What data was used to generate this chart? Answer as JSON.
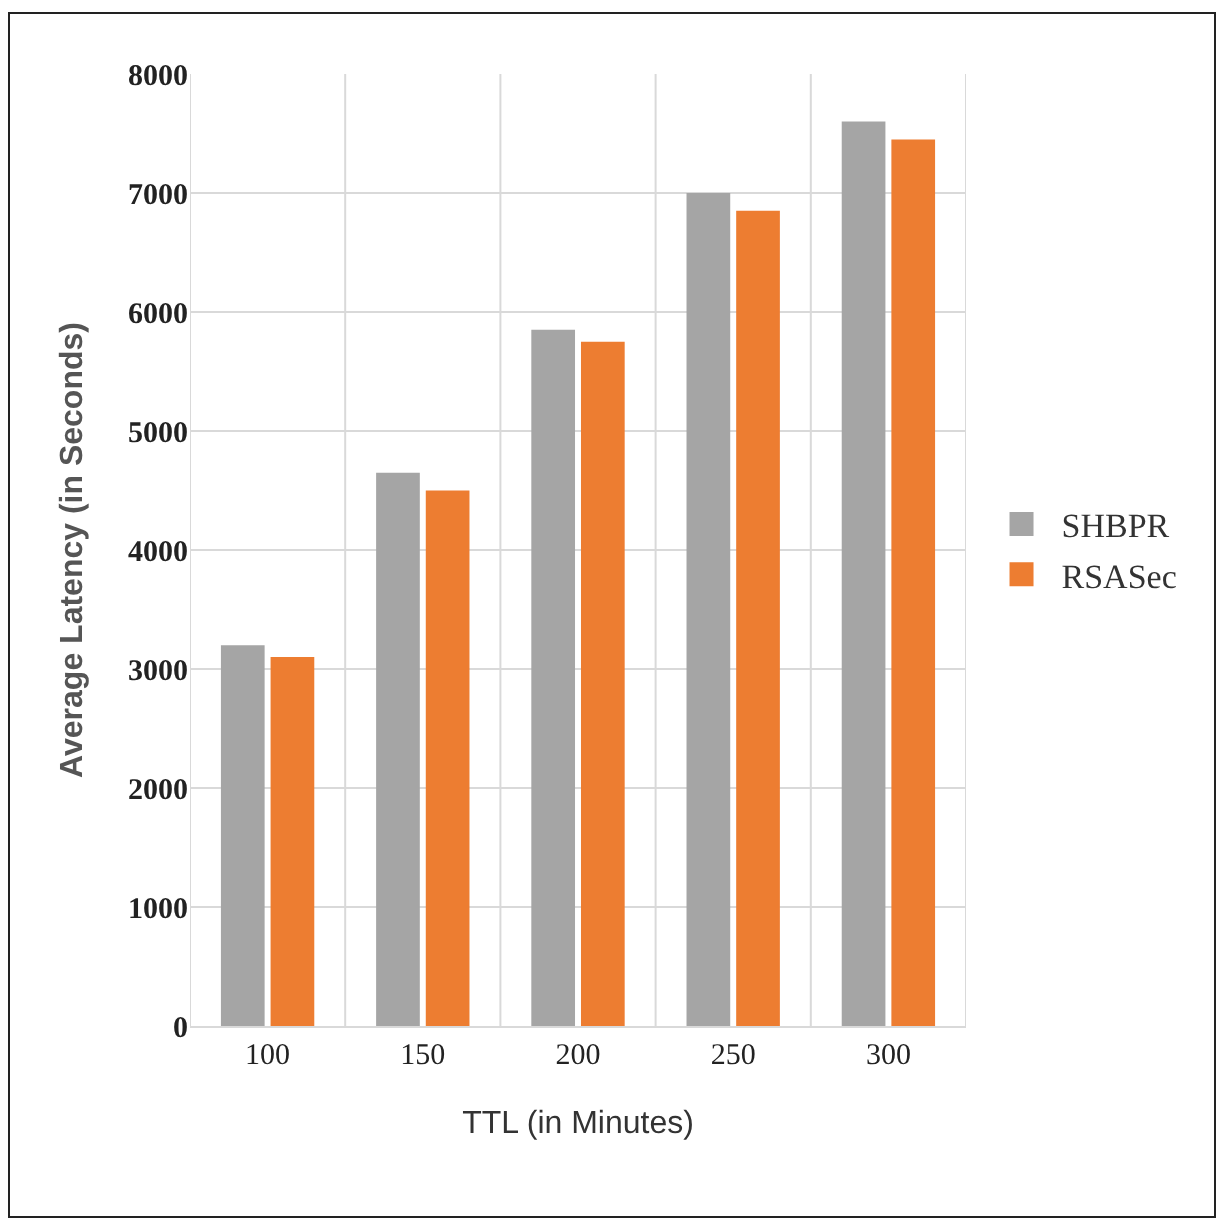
{
  "chart_data": {
    "type": "bar",
    "xlabel": "TTL (in Minutes)",
    "ylabel": "Average Latency (in Seconds)",
    "categories": [
      "100",
      "150",
      "200",
      "250",
      "300"
    ],
    "series": [
      {
        "name": "SHBPR",
        "color": "#a5a5a5",
        "values": [
          3200,
          4650,
          5850,
          7000,
          7600
        ]
      },
      {
        "name": "RSASec",
        "color": "#ed7d31",
        "values": [
          3100,
          4500,
          5750,
          6850,
          7450
        ]
      }
    ],
    "ylim": [
      0,
      8000
    ],
    "yticks": [
      0,
      1000,
      2000,
      3000,
      4000,
      5000,
      6000,
      7000,
      8000
    ],
    "grid": true,
    "legend": "right"
  }
}
